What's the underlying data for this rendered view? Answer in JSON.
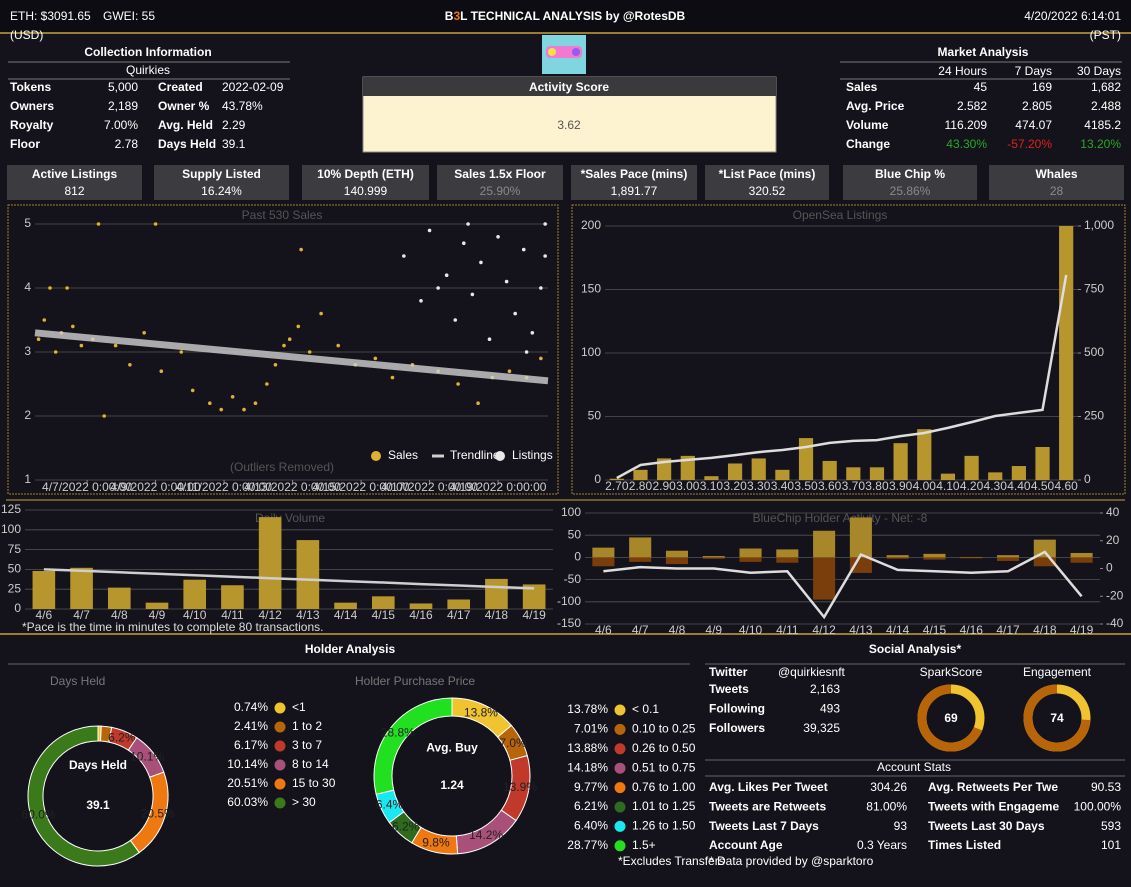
{
  "header": {
    "eth": "ETH: $3091.65",
    "gwei": "GWEI: 55",
    "title_parts": [
      "B",
      "3",
      "L TECHNICAL ANALYSIS by @RotesDB"
    ],
    "title_colors": [
      "#ffffff",
      "#f07810",
      "#ffffff"
    ],
    "datetime": "4/20/2022 6:14:01",
    "currency": "(USD)",
    "timezone": "(PST)"
  },
  "collection": {
    "title": "Collection Information",
    "name": "Quirkies",
    "rows": [
      [
        "Tokens",
        "5,000",
        "Created",
        "2022-02-09"
      ],
      [
        "Owners",
        "2,189",
        "Owner %",
        "43.78%"
      ],
      [
        "Royalty",
        "7.00%",
        "Avg. Held",
        "2.29"
      ],
      [
        "Floor",
        "2.78",
        "Days Held",
        "39.1"
      ]
    ]
  },
  "activity": {
    "title": "Activity Score",
    "score": "3.62"
  },
  "market": {
    "title": "Market Analysis",
    "columns": [
      "24 Hours",
      "7 Days",
      "30 Days"
    ],
    "rows": [
      {
        "label": "Sales",
        "values": [
          "45",
          "169",
          "1,682"
        ]
      },
      {
        "label": "Avg. Price",
        "values": [
          "2.582",
          "2.805",
          "2.488"
        ]
      },
      {
        "label": "Volume",
        "values": [
          "116.209",
          "474.07",
          "4185.2"
        ]
      },
      {
        "label": "Change",
        "values": [
          "43.30%",
          "-57.20%",
          "13.20%"
        ],
        "colors": [
          "#2aa52a",
          "#e02020",
          "#2aa52a"
        ]
      }
    ]
  },
  "stats": [
    {
      "label": "Active Listings",
      "value": "812"
    },
    {
      "label": "Supply Listed",
      "value": "16.24%"
    },
    {
      "label": "10% Depth (ETH)",
      "value": "140.999"
    },
    {
      "label": "Sales 1.5x Floor",
      "value": "25.90%",
      "color": "#8a8a8a"
    },
    {
      "label": "*Sales Pace (mins)",
      "value": "1,891.77"
    },
    {
      "label": "*List Pace (mins)",
      "value": "320.52"
    },
    {
      "label": "Blue Chip %",
      "value": "25.86%",
      "color": "#8a8a8a"
    },
    {
      "label": "Whales",
      "value": "28",
      "color": "#8a8a8a"
    }
  ],
  "sections": {
    "holder": "Holder Analysis",
    "social": "Social Analysis*"
  },
  "chart_data": [
    {
      "type": "scatter",
      "title": "Past 530 Sales",
      "annotation": "(Outliers Removed)",
      "grid": true,
      "xlim": [
        "2022-04-05T11:30",
        "2022-04-20T11:00"
      ],
      "xticks": [
        {
          "value": "2022-04-07T00:00",
          "label": "4/7/2022 0:00:00"
        },
        {
          "value": "2022-04-09T00:00",
          "label": "4/9/2022 0:00:00"
        },
        {
          "value": "2022-04-11T00:00",
          "label": "4/11/2022 0:00:00"
        },
        {
          "value": "2022-04-13T00:00",
          "label": "4/13/2022 0:00:00"
        },
        {
          "value": "2022-04-15T00:00",
          "label": "4/15/2022 0:00:00"
        },
        {
          "value": "2022-04-17T00:00",
          "label": "4/17/2022 0:00:00"
        },
        {
          "value": "2022-04-19T00:00",
          "label": "4/19/2022 0:00:00"
        }
      ],
      "ylim": [
        1,
        5
      ],
      "yticks": [
        1,
        2,
        3,
        4,
        5
      ],
      "series": [
        {
          "name": "Sales",
          "color": "#e0b030",
          "x": [
            "2022-04-05T14:00",
            "2022-04-05T18:00",
            "2022-04-05T22:00",
            "2022-04-06T02:00",
            "2022-04-06T06:00",
            "2022-04-06T10:00",
            "2022-04-06T14:00",
            "2022-04-06T20:00",
            "2022-04-07T04:00",
            "2022-04-07T12:00",
            "2022-04-07T20:00",
            "2022-04-08T06:00",
            "2022-04-08T16:00",
            "2022-04-09T04:00",
            "2022-04-09T18:00",
            "2022-04-10T02:00",
            "2022-04-10T14:00",
            "2022-04-10T22:00",
            "2022-04-11T06:00",
            "2022-04-11T14:00",
            "2022-04-11T22:00",
            "2022-04-12T06:00",
            "2022-04-12T12:00",
            "2022-04-12T18:00",
            "2022-04-12T22:00",
            "2022-04-13T04:00",
            "2022-04-13T12:00",
            "2022-04-13T20:00",
            "2022-04-14T08:00",
            "2022-04-14T20:00",
            "2022-04-15T10:00",
            "2022-04-15T22:00",
            "2022-04-16T12:00",
            "2022-04-17T06:00",
            "2022-04-17T20:00",
            "2022-04-18T10:00",
            "2022-04-18T20:00",
            "2022-04-19T08:00",
            "2022-04-19T20:00",
            "2022-04-20T06:00",
            "2022-04-07T08:00",
            "2022-04-09T00:00",
            "2022-04-13T06:00"
          ],
          "values": [
            3.2,
            3.5,
            4.0,
            3.0,
            3.3,
            4.0,
            3.4,
            3.1,
            3.2,
            2.0,
            3.1,
            2.8,
            3.3,
            2.7,
            3.0,
            2.4,
            2.2,
            2.1,
            2.3,
            2.1,
            2.2,
            2.5,
            2.8,
            3.1,
            3.2,
            3.4,
            3.0,
            3.6,
            3.1,
            2.8,
            2.9,
            2.6,
            2.8,
            2.7,
            2.5,
            2.2,
            2.6,
            2.7,
            2.6,
            2.9,
            5.0,
            5.0,
            4.6
          ]
        },
        {
          "name": "Trendline",
          "color": "#cfcfcf",
          "style": "line",
          "x": [
            "2022-04-05T11:30",
            "2022-04-20T11:00"
          ],
          "values": [
            3.3,
            2.55
          ]
        },
        {
          "name": "Listings",
          "color": "#e8e8e8",
          "x": [
            "2022-04-16T06:00",
            "2022-04-16T18:00",
            "2022-04-17T00:00",
            "2022-04-17T12:00",
            "2022-04-17T18:00",
            "2022-04-18T00:00",
            "2022-04-18T06:00",
            "2022-04-18T12:00",
            "2022-04-18T18:00",
            "2022-04-19T00:00",
            "2022-04-19T06:00",
            "2022-04-19T12:00",
            "2022-04-19T18:00",
            "2022-04-20T00:00",
            "2022-04-20T06:00",
            "2022-04-20T09:00",
            "2022-04-20T09:00",
            "2022-04-19T20:00",
            "2022-04-17T06:00",
            "2022-04-18T03:00"
          ],
          "values": [
            4.5,
            3.8,
            4.9,
            4.2,
            3.5,
            4.7,
            3.9,
            4.4,
            3.2,
            4.8,
            4.1,
            3.6,
            4.6,
            3.3,
            4.0,
            5.0,
            4.5,
            3.0,
            4.0,
            5.0
          ]
        }
      ]
    },
    {
      "type": "bar",
      "title": "OpenSea Listings",
      "grid": true,
      "categories": [
        "2.70",
        "2.80",
        "2.90",
        "3.00",
        "3.10",
        "3.20",
        "3.30",
        "3.40",
        "3.50",
        "3.60",
        "3.70",
        "3.80",
        "3.90",
        "4.00",
        "4.10",
        "4.20",
        "4.30",
        "4.40",
        "4.50",
        "4.60"
      ],
      "ylim": [
        0,
        200
      ],
      "yticks": [
        0,
        50,
        100,
        150,
        200
      ],
      "y2lim": [
        0,
        1000
      ],
      "y2ticks": [
        0,
        250,
        500,
        750,
        {
          "value": 1000,
          "label": "1,000"
        }
      ],
      "series": [
        {
          "color": "#b8962e",
          "values": [
            1,
            8,
            17,
            19,
            3,
            13,
            17,
            8,
            33,
            15,
            10,
            10,
            29,
            40,
            5,
            19,
            6,
            11,
            26,
            200
          ]
        },
        {
          "color": "#dddddd",
          "style": "line",
          "axis": "y2",
          "values": [
            8,
            59,
            71,
            79,
            87,
            98,
            110,
            118,
            130,
            146,
            154,
            157,
            173,
            185,
            205,
            228,
            252,
            264,
            276,
            807
          ]
        }
      ]
    },
    {
      "type": "bar",
      "title": "Daily Volume",
      "grid": true,
      "note": "*Pace is the time in minutes to complete 80 transactions.",
      "categories": [
        "4/6",
        "4/7",
        "4/8",
        "4/9",
        "4/10",
        "4/11",
        "4/12",
        "4/13",
        "4/14",
        "4/15",
        "4/16",
        "4/17",
        "4/18",
        "4/19"
      ],
      "ylim": [
        0,
        125
      ],
      "yticks": [
        0,
        25,
        50,
        75,
        100,
        125
      ],
      "series": [
        {
          "color": "#b8962e",
          "values": [
            48,
            52,
            27,
            8,
            37,
            30,
            116,
            87,
            8,
            16,
            7,
            12,
            38,
            31
          ]
        },
        {
          "color": "#cfcfcf",
          "style": "line",
          "values": [
            50,
            48.2,
            46.3,
            44.5,
            42.6,
            40.8,
            38.9,
            37.1,
            35.2,
            33.4,
            31.5,
            29.7,
            27.8,
            26
          ]
        }
      ]
    },
    {
      "type": "bar",
      "title": "BlueChip Holder Activity - Net: -8",
      "grid": true,
      "categories": [
        "4/6",
        "4/7",
        "4/8",
        "4/9",
        "4/10",
        "4/11",
        "4/12",
        "4/13",
        "4/14",
        "4/15",
        "4/16",
        "4/17",
        "4/18",
        "4/19"
      ],
      "ylim": [
        -150,
        100
      ],
      "yticks": [
        -150,
        -100,
        -50,
        0,
        50,
        100
      ],
      "y2lim": [
        -40,
        40
      ],
      "y2ticks": [
        -40,
        -20,
        0,
        20,
        40
      ],
      "series": [
        {
          "color": "#a8862a",
          "values": [
            22,
            45,
            15,
            3,
            20,
            18,
            60,
            90,
            5,
            8,
            1,
            5,
            40,
            10
          ]
        },
        {
          "color": "#7a3e0c",
          "values": [
            -20,
            -10,
            -15,
            -3,
            -10,
            -12,
            -95,
            -35,
            -3,
            -5,
            -2,
            -8,
            -20,
            -12
          ]
        },
        {
          "color": "#dddddd",
          "style": "line",
          "axis": "y2",
          "values": [
            -2,
            1,
            0,
            0,
            -3,
            -2,
            -35,
            10,
            -1,
            -2,
            -3,
            -2,
            12,
            -20
          ]
        }
      ]
    },
    {
      "type": "pie",
      "title": "Days Held",
      "center_title": "Days Held",
      "center_value": "39.1",
      "labels": [
        "<1",
        "1 to 2",
        "3 to 7",
        "8 to 14",
        "15 to 30",
        "> 30"
      ],
      "values": [
        0.74,
        2.41,
        6.17,
        10.14,
        20.51,
        60.03
      ],
      "value_labels": [
        "0.74%",
        "2.41%",
        "6.17%",
        "10.14%",
        "20.51%",
        "60.03%"
      ],
      "slice_labels": [
        null,
        null,
        "6.2%",
        "10.1%",
        "20.5%",
        "60.0%"
      ],
      "colors": [
        "#f0c330",
        "#b8650a",
        "#c0392b",
        "#a8507a",
        "#f07810",
        "#3a7a1a"
      ]
    },
    {
      "type": "pie",
      "title": "Holder Purchase Price",
      "center_title": "Avg. Buy",
      "center_value": "1.24",
      "note": "*Excludes Transfers",
      "labels": [
        "< 0.1",
        "0.10 to 0.25",
        "0.26 to 0.50",
        "0.51 to 0.75",
        "0.76 to 1.00",
        "1.01 to 1.25",
        "1.26 to 1.50",
        "1.5+"
      ],
      "values": [
        13.78,
        7.01,
        13.88,
        14.18,
        9.77,
        6.21,
        6.4,
        28.77
      ],
      "value_labels": [
        "13.78%",
        "7.01%",
        "13.88%",
        "14.18%",
        "9.77%",
        "6.21%",
        "6.40%",
        "28.77%"
      ],
      "slice_labels": [
        "13.8%",
        "7.0%",
        "13.9%",
        "14.2%",
        "9.8%",
        "6.2%",
        "6.4%",
        "28.8%"
      ],
      "colors": [
        "#f0c330",
        "#b8650a",
        "#c0392b",
        "#a8507a",
        "#f07810",
        "#2e6b1e",
        "#1ae8f0",
        "#20e020"
      ]
    }
  ],
  "social": {
    "twitter": [
      "Twitter",
      "@quirkiesnft"
    ],
    "rows": [
      [
        "Tweets",
        "2,163"
      ],
      [
        "Following",
        "493"
      ],
      [
        "Followers",
        "39,325"
      ]
    ],
    "gauges": [
      {
        "title": "SparkScore",
        "value": 69,
        "range": [
          0,
          100
        ]
      },
      {
        "title": "Engagement",
        "value": 74,
        "range": [
          0,
          100
        ]
      }
    ],
    "stats_title": "Account Stats",
    "stats": [
      [
        "Avg. Likes Per Tweet",
        "304.26",
        "Avg. Retweets Per Twe",
        "90.53"
      ],
      [
        "Tweets are Retweets",
        "81.00%",
        "Tweets with Engageme",
        "100.00%"
      ],
      [
        "Tweets Last 7 Days",
        "93",
        "Tweets Last 30 Days",
        "593"
      ],
      [
        "Account Age",
        "0.3 Years",
        "Times Listed",
        "101"
      ]
    ],
    "note": "* Data provided by @sparktoro"
  }
}
